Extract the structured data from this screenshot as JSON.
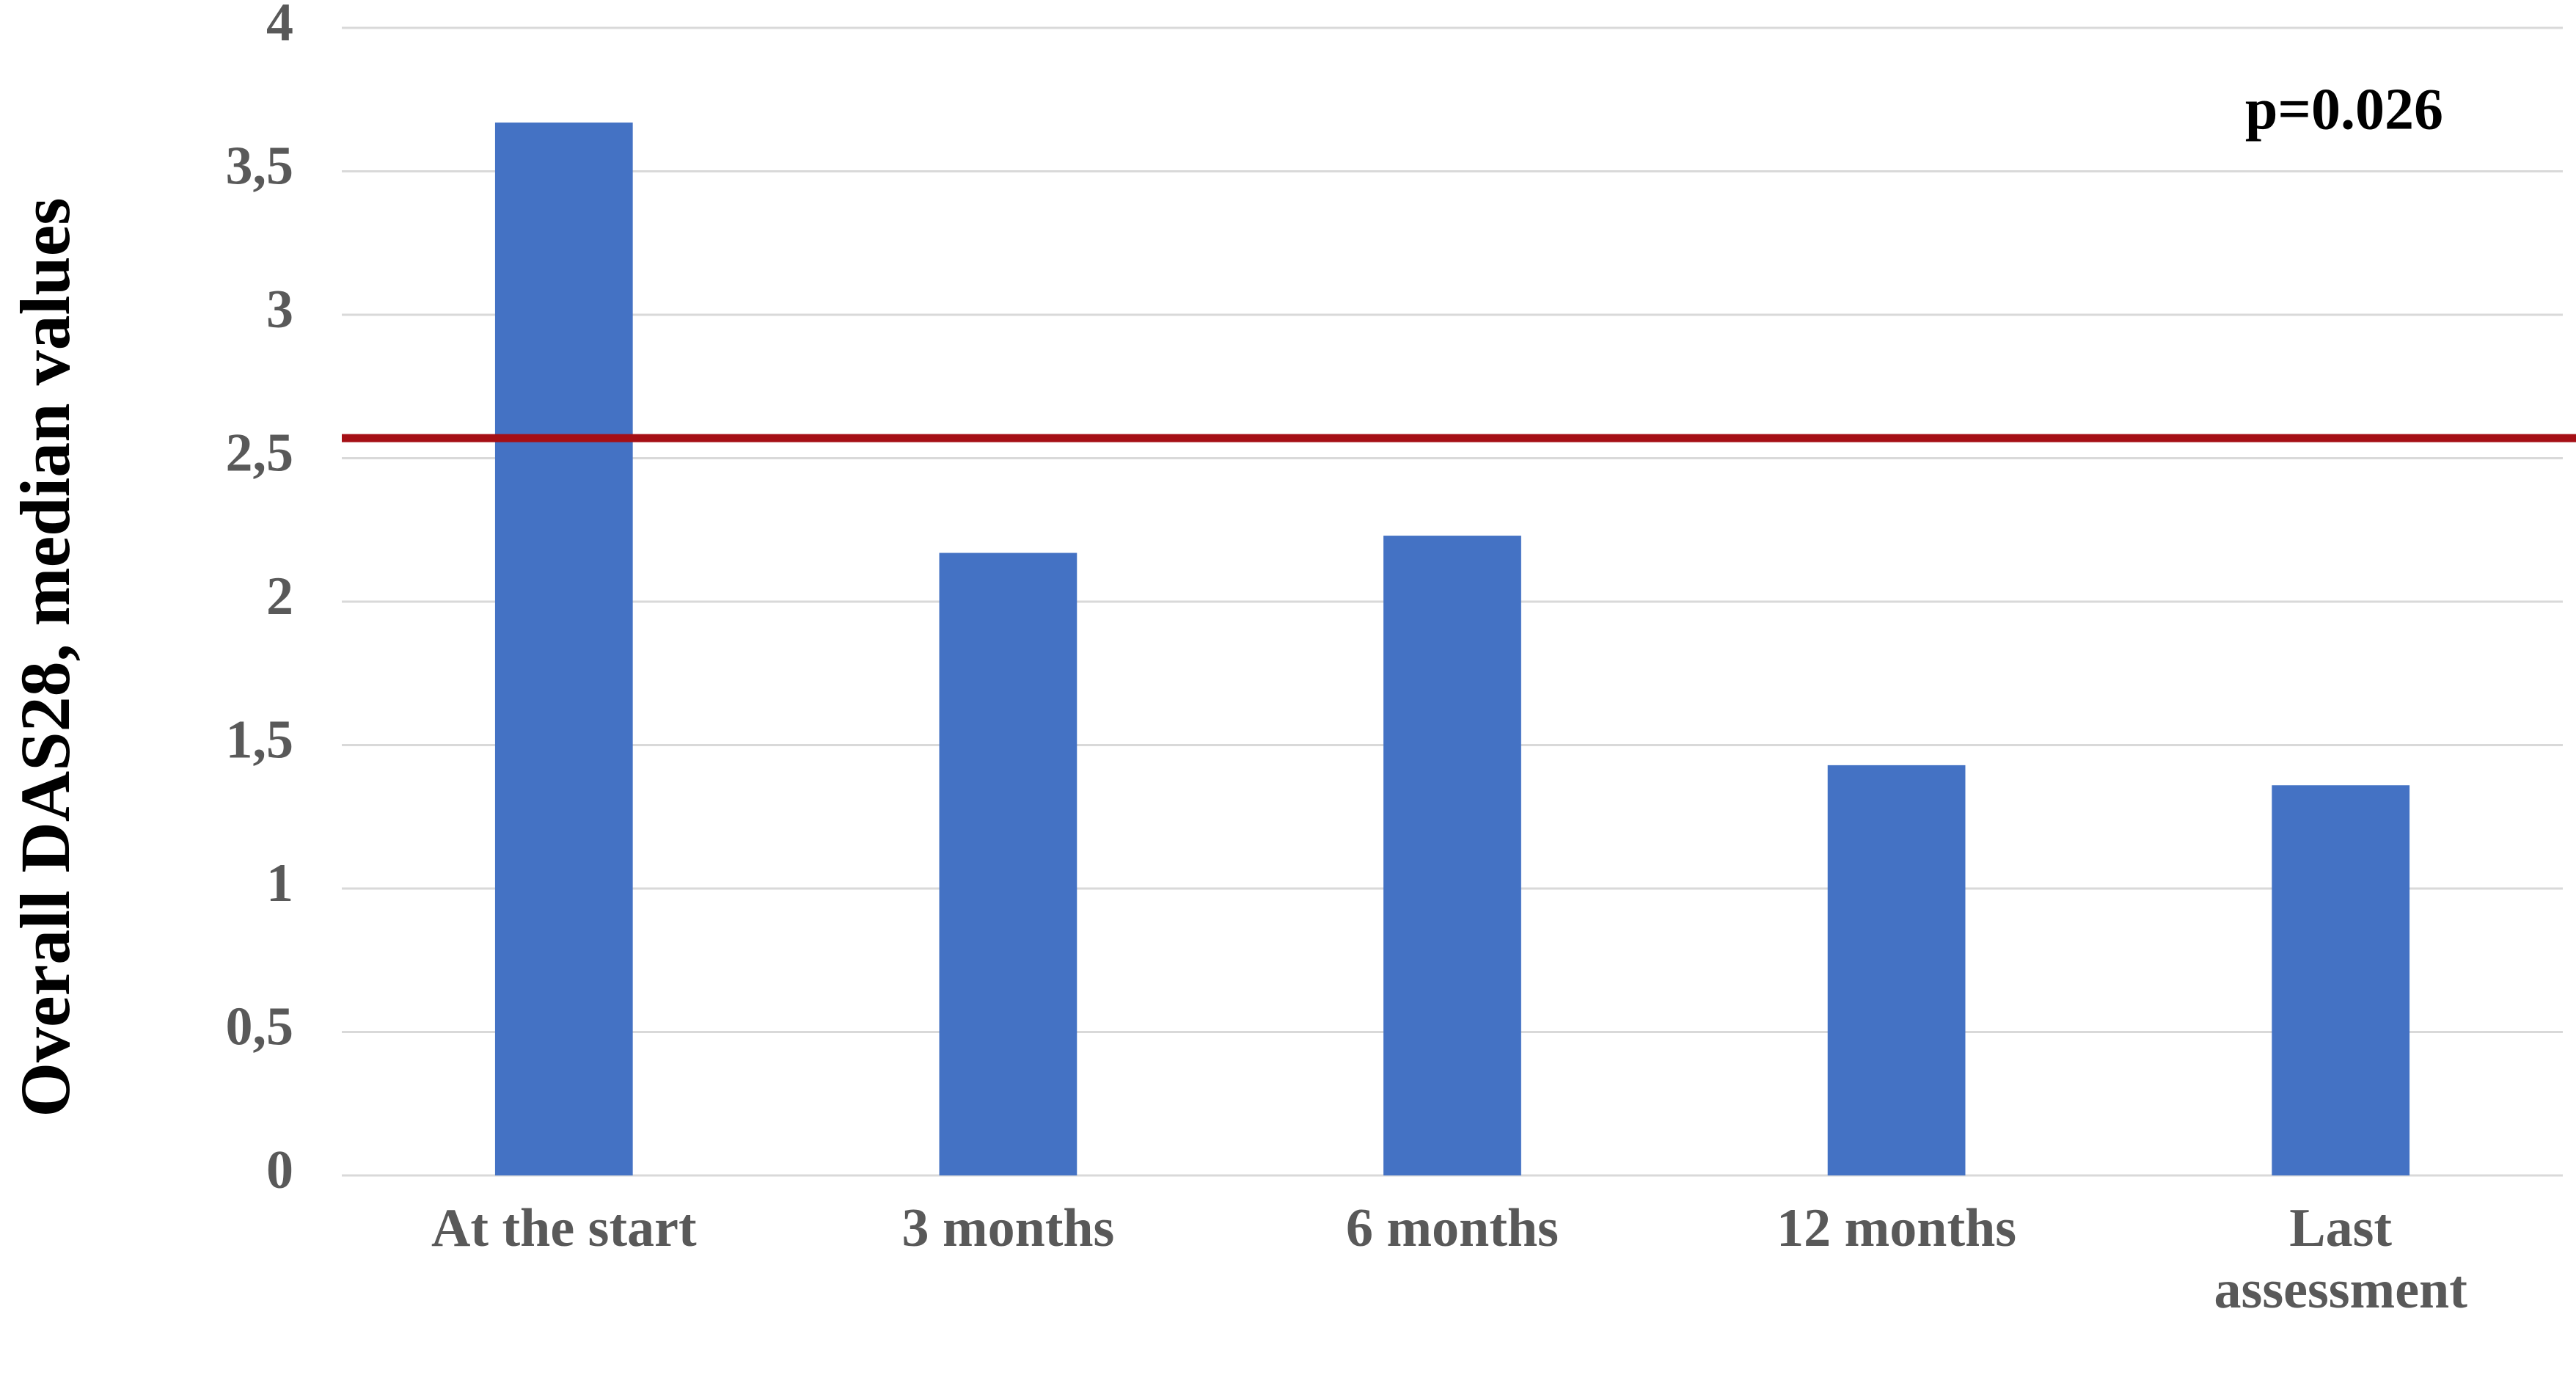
{
  "chart_data": {
    "type": "bar",
    "y_label": "Overall DAS28, median values",
    "annotation": "p=0.026",
    "categories": [
      "At the start",
      "3 months",
      "6 months",
      "12 months",
      "Last assessment"
    ],
    "values": [
      3.67,
      2.17,
      2.23,
      1.43,
      1.36
    ],
    "color": "#4472c4",
    "reference_line": {
      "value": 2.57,
      "color": "#a50f15"
    },
    "ylim": [
      0,
      4
    ],
    "yticks": [
      0,
      {
        "value": 0.5,
        "label": "0,5"
      },
      1,
      {
        "value": 1.5,
        "label": "1,5"
      },
      2,
      {
        "value": 2.5,
        "label": "2,5"
      },
      3,
      {
        "value": 3.5,
        "label": "3,5"
      },
      4
    ],
    "grid": true
  }
}
